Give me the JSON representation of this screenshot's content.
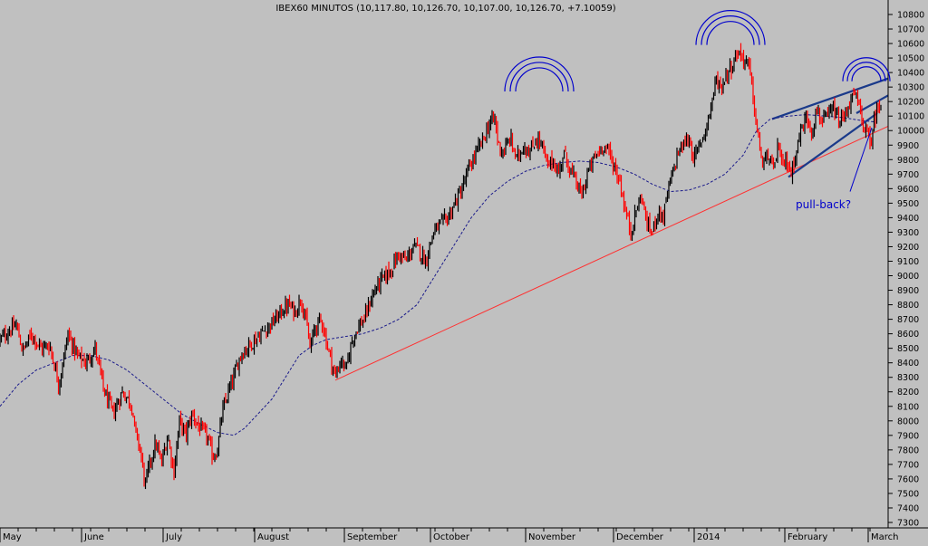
{
  "chart_data": {
    "type": "candlestick",
    "title": "IBEX60 MINUTOS (10,117.80, 10,126.70, 10,107.00, 10,126.70, +7.10059)",
    "xlabel": "",
    "ylabel": "",
    "ylim": [
      7300,
      10850
    ],
    "y_ticks": [
      7300,
      7400,
      7500,
      7600,
      7700,
      7800,
      7900,
      8000,
      8100,
      8200,
      8300,
      8400,
      8500,
      8600,
      8700,
      8800,
      8900,
      9000,
      9100,
      9200,
      9300,
      9400,
      9500,
      9600,
      9700,
      9800,
      9900,
      10000,
      10100,
      10200,
      10300,
      10400,
      10500,
      10600,
      10700,
      10800
    ],
    "x_ticks": [
      {
        "label": "May",
        "x": 0
      },
      {
        "label": "June",
        "x": 90
      },
      {
        "label": "July",
        "x": 180
      },
      {
        "label": "August",
        "x": 281
      },
      {
        "label": "September",
        "x": 380
      },
      {
        "label": "October",
        "x": 475
      },
      {
        "label": "November",
        "x": 580
      },
      {
        "label": "December",
        "x": 677
      },
      {
        "label": "2014",
        "x": 766
      },
      {
        "label": "February",
        "x": 866
      },
      {
        "label": "March",
        "x": 958
      }
    ],
    "x_range": [
      0,
      980
    ],
    "grid": false,
    "price_path": [
      [
        0,
        8560
      ],
      [
        10,
        8620
      ],
      [
        18,
        8660
      ],
      [
        25,
        8480
      ],
      [
        35,
        8600
      ],
      [
        45,
        8500
      ],
      [
        55,
        8520
      ],
      [
        65,
        8250
      ],
      [
        75,
        8600
      ],
      [
        85,
        8450
      ],
      [
        95,
        8400
      ],
      [
        105,
        8500
      ],
      [
        115,
        8200
      ],
      [
        125,
        8050
      ],
      [
        135,
        8200
      ],
      [
        145,
        8120
      ],
      [
        150,
        7900
      ],
      [
        155,
        7800
      ],
      [
        160,
        7550
      ],
      [
        165,
        7700
      ],
      [
        172,
        7850
      ],
      [
        178,
        7700
      ],
      [
        185,
        7900
      ],
      [
        192,
        7650
      ],
      [
        198,
        8000
      ],
      [
        205,
        7900
      ],
      [
        212,
        8050
      ],
      [
        220,
        7950
      ],
      [
        228,
        7900
      ],
      [
        235,
        7750
      ],
      [
        240,
        7800
      ],
      [
        245,
        8050
      ],
      [
        252,
        8200
      ],
      [
        258,
        8300
      ],
      [
        265,
        8450
      ],
      [
        272,
        8500
      ],
      [
        280,
        8550
      ],
      [
        288,
        8600
      ],
      [
        296,
        8650
      ],
      [
        304,
        8700
      ],
      [
        310,
        8750
      ],
      [
        318,
        8800
      ],
      [
        326,
        8750
      ],
      [
        332,
        8850
      ],
      [
        338,
        8680
      ],
      [
        342,
        8500
      ],
      [
        348,
        8650
      ],
      [
        355,
        8700
      ],
      [
        360,
        8550
      ],
      [
        366,
        8400
      ],
      [
        370,
        8300
      ],
      [
        376,
        8420
      ],
      [
        382,
        8350
      ],
      [
        388,
        8550
      ],
      [
        395,
        8650
      ],
      [
        402,
        8700
      ],
      [
        410,
        8850
      ],
      [
        418,
        8950
      ],
      [
        426,
        9000
      ],
      [
        432,
        9050
      ],
      [
        440,
        9150
      ],
      [
        448,
        9100
      ],
      [
        456,
        9200
      ],
      [
        462,
        9180
      ],
      [
        470,
        9100
      ],
      [
        478,
        9300
      ],
      [
        486,
        9350
      ],
      [
        494,
        9400
      ],
      [
        502,
        9500
      ],
      [
        510,
        9600
      ],
      [
        518,
        9750
      ],
      [
        526,
        9850
      ],
      [
        534,
        9950
      ],
      [
        540,
        10050
      ],
      [
        546,
        10080
      ],
      [
        550,
        9900
      ],
      [
        556,
        9850
      ],
      [
        563,
        9950
      ],
      [
        570,
        9800
      ],
      [
        578,
        9900
      ],
      [
        585,
        9850
      ],
      [
        592,
        9950
      ],
      [
        598,
        9900
      ],
      [
        604,
        9750
      ],
      [
        610,
        9800
      ],
      [
        616,
        9700
      ],
      [
        622,
        9850
      ],
      [
        628,
        9750
      ],
      [
        635,
        9650
      ],
      [
        642,
        9550
      ],
      [
        648,
        9700
      ],
      [
        655,
        9800
      ],
      [
        660,
        9850
      ],
      [
        666,
        9900
      ],
      [
        672,
        9850
      ],
      [
        678,
        9750
      ],
      [
        684,
        9650
      ],
      [
        690,
        9450
      ],
      [
        696,
        9300
      ],
      [
        702,
        9450
      ],
      [
        708,
        9550
      ],
      [
        714,
        9350
      ],
      [
        720,
        9300
      ],
      [
        726,
        9450
      ],
      [
        732,
        9400
      ],
      [
        736,
        9550
      ],
      [
        742,
        9700
      ],
      [
        748,
        9850
      ],
      [
        754,
        9900
      ],
      [
        760,
        9950
      ],
      [
        766,
        9800
      ],
      [
        772,
        9900
      ],
      [
        778,
        10000
      ],
      [
        784,
        10150
      ],
      [
        790,
        10350
      ],
      [
        796,
        10300
      ],
      [
        802,
        10400
      ],
      [
        808,
        10450
      ],
      [
        814,
        10550
      ],
      [
        820,
        10500
      ],
      [
        826,
        10450
      ],
      [
        830,
        10300
      ],
      [
        834,
        10050
      ],
      [
        838,
        9900
      ],
      [
        842,
        9750
      ],
      [
        848,
        9850
      ],
      [
        853,
        9700
      ],
      [
        858,
        9900
      ],
      [
        863,
        9750
      ],
      [
        868,
        9800
      ],
      [
        873,
        9700
      ],
      [
        878,
        9850
      ],
      [
        884,
        10000
      ],
      [
        890,
        10100
      ],
      [
        896,
        10000
      ],
      [
        902,
        10150
      ],
      [
        908,
        10050
      ],
      [
        914,
        10100
      ],
      [
        920,
        10150
      ],
      [
        926,
        10050
      ],
      [
        932,
        10100
      ],
      [
        938,
        10200
      ],
      [
        944,
        10250
      ],
      [
        948,
        10150
      ],
      [
        952,
        10050
      ],
      [
        956,
        10000
      ],
      [
        960,
        9900
      ],
      [
        964,
        10050
      ],
      [
        968,
        10150
      ],
      [
        972,
        10200
      ]
    ],
    "moving_average": [
      [
        0,
        8100
      ],
      [
        20,
        8250
      ],
      [
        40,
        8350
      ],
      [
        60,
        8400
      ],
      [
        80,
        8450
      ],
      [
        100,
        8450
      ],
      [
        120,
        8420
      ],
      [
        140,
        8350
      ],
      [
        160,
        8250
      ],
      [
        180,
        8150
      ],
      [
        200,
        8050
      ],
      [
        220,
        7980
      ],
      [
        240,
        7920
      ],
      [
        258,
        7900
      ],
      [
        270,
        7950
      ],
      [
        285,
        8050
      ],
      [
        300,
        8150
      ],
      [
        315,
        8300
      ],
      [
        330,
        8450
      ],
      [
        345,
        8520
      ],
      [
        360,
        8560
      ],
      [
        380,
        8580
      ],
      [
        400,
        8600
      ],
      [
        420,
        8640
      ],
      [
        440,
        8700
      ],
      [
        460,
        8800
      ],
      [
        480,
        9000
      ],
      [
        500,
        9200
      ],
      [
        520,
        9400
      ],
      [
        540,
        9550
      ],
      [
        560,
        9650
      ],
      [
        580,
        9720
      ],
      [
        600,
        9760
      ],
      [
        620,
        9780
      ],
      [
        640,
        9790
      ],
      [
        660,
        9780
      ],
      [
        680,
        9750
      ],
      [
        700,
        9700
      ],
      [
        720,
        9630
      ],
      [
        740,
        9580
      ],
      [
        760,
        9590
      ],
      [
        780,
        9630
      ],
      [
        800,
        9700
      ],
      [
        820,
        9830
      ],
      [
        835,
        10000
      ],
      [
        850,
        10080
      ],
      [
        870,
        10100
      ],
      [
        890,
        10110
      ],
      [
        910,
        10100
      ],
      [
        930,
        10090
      ],
      [
        950,
        10070
      ],
      [
        965,
        10060
      ]
    ],
    "trendlines": [
      {
        "name": "support",
        "color": "#ff3030",
        "from": [
          370,
          8280
        ],
        "to": [
          980,
          10030
        ]
      },
      {
        "name": "wedge-top",
        "color": "#1a3a8a",
        "from": [
          852,
          10080
        ],
        "to": [
          985,
          10370
        ]
      },
      {
        "name": "wedge-bottom",
        "color": "#1a3a8a",
        "from": [
          870,
          9680
        ],
        "to": [
          968,
          10120
        ]
      },
      {
        "name": "channel-top",
        "color": "#1a3a8a",
        "from": [
          945,
          10120
        ],
        "to": [
          985,
          10260
        ]
      }
    ],
    "arcs": [
      {
        "cx": 595,
        "cy": 10270,
        "r": [
          38,
          32,
          26
        ]
      },
      {
        "cx": 806,
        "cy": 10590,
        "r": [
          38,
          32,
          26
        ]
      },
      {
        "cx": 956,
        "cy": 10340,
        "r": [
          26,
          21,
          16
        ]
      }
    ],
    "annotation": {
      "text": "pull-back?",
      "x": 906,
      "y": 9490,
      "arrow_to": [
        962,
        10020
      ],
      "arrow_from": [
        938,
        9580
      ]
    },
    "colors": {
      "up": "#000000",
      "down": "#ff0000",
      "ma": "#1a1a8a",
      "support": "#ff3030",
      "wedge": "#1a3a8a",
      "background": "#c0c0c0"
    }
  }
}
